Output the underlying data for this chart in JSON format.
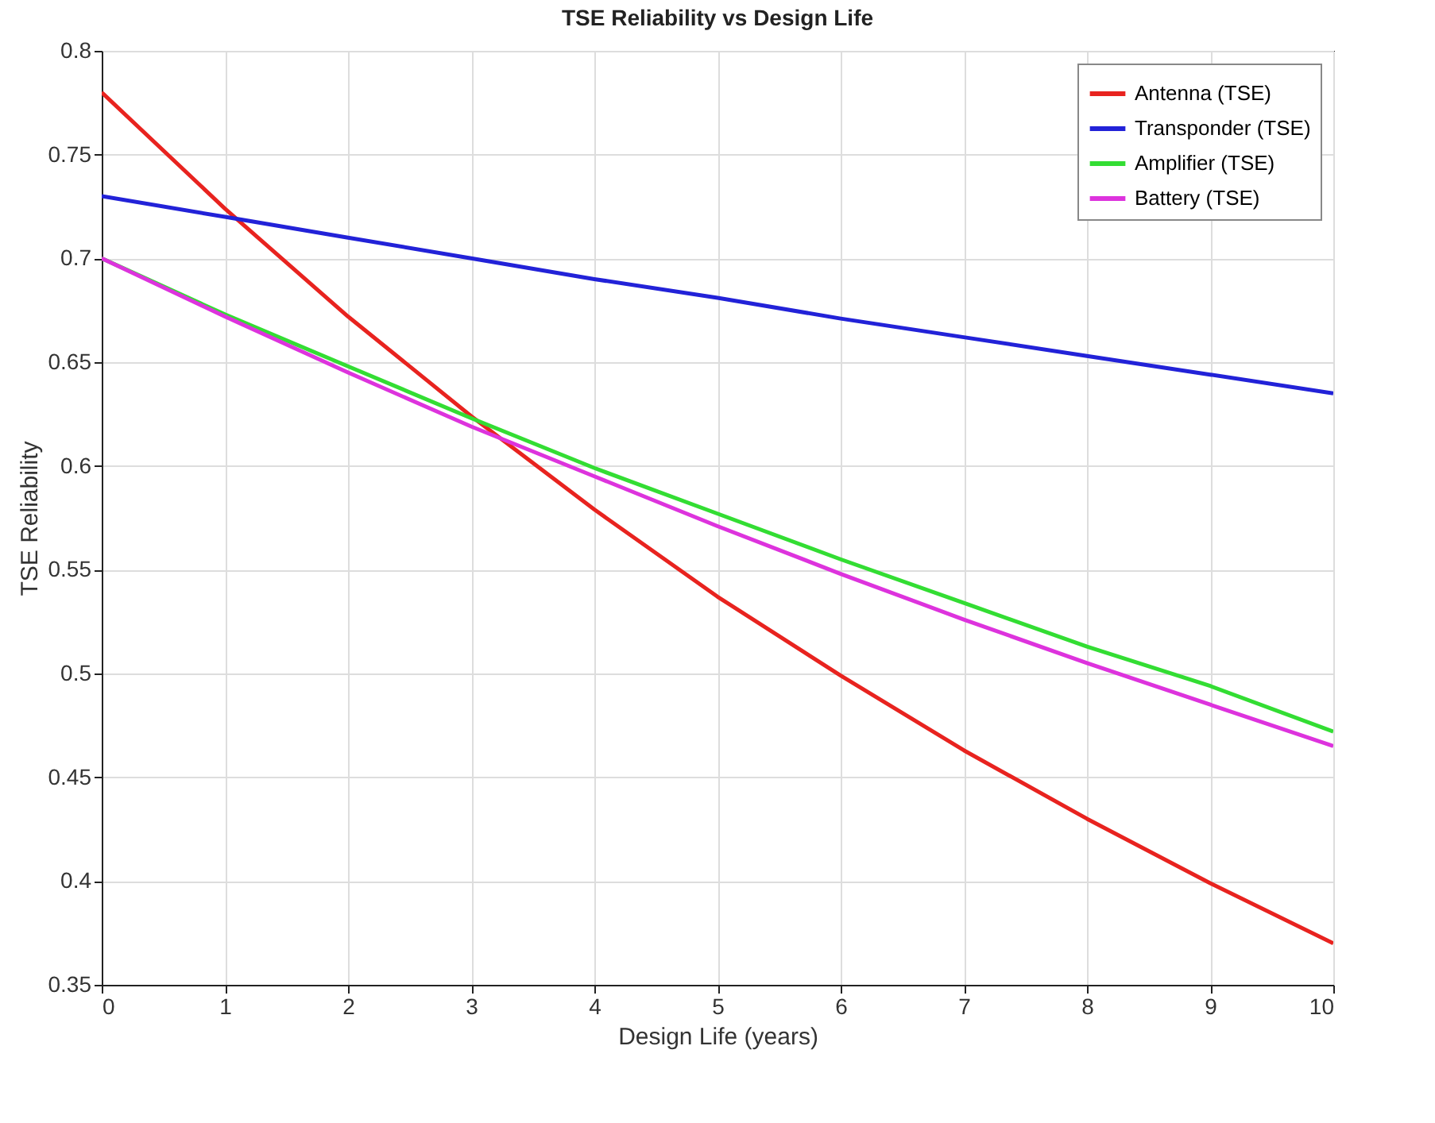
{
  "chart_data": {
    "type": "line",
    "title": "TSE Reliability vs Design Life",
    "xlabel": "Design Life (years)",
    "ylabel": "TSE Reliability",
    "x": [
      0,
      1,
      2,
      3,
      4,
      5,
      6,
      7,
      8,
      9,
      10
    ],
    "series": [
      {
        "name": "Antenna (TSE)",
        "color": "#e8231f",
        "values": [
          0.78,
          0.724,
          0.672,
          0.624,
          0.579,
          0.537,
          0.499,
          0.463,
          0.43,
          0.399,
          0.37
        ]
      },
      {
        "name": "Transponder (TSE)",
        "color": "#2222d8",
        "values": [
          0.73,
          0.72,
          0.71,
          0.7,
          0.69,
          0.681,
          0.671,
          0.662,
          0.653,
          0.644,
          0.635
        ]
      },
      {
        "name": "Amplifier (TSE)",
        "color": "#33dd33",
        "values": [
          0.7,
          0.673,
          0.648,
          0.623,
          0.599,
          0.577,
          0.555,
          0.534,
          0.513,
          0.494,
          0.472
        ]
      },
      {
        "name": "Battery (TSE)",
        "color": "#dd33dd",
        "values": [
          0.7,
          0.672,
          0.645,
          0.619,
          0.595,
          0.571,
          0.548,
          0.526,
          0.505,
          0.485,
          0.465
        ]
      }
    ],
    "xlim": [
      0,
      10
    ],
    "ylim": [
      0.35,
      0.8
    ],
    "xticks": [
      0,
      1,
      2,
      3,
      4,
      5,
      6,
      7,
      8,
      9,
      10
    ],
    "yticks": [
      0.35,
      0.4,
      0.45,
      0.5,
      0.55,
      0.6,
      0.65,
      0.7,
      0.75,
      0.8
    ],
    "grid": true,
    "legend": "top right",
    "line_style": "solid"
  }
}
